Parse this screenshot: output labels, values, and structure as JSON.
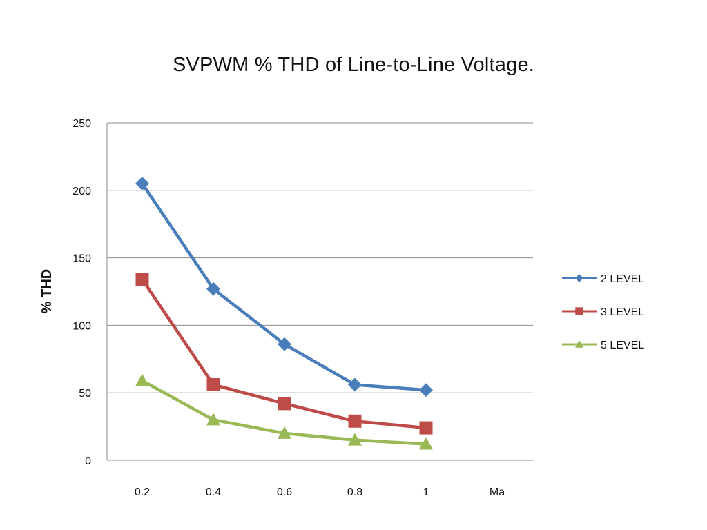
{
  "chart_data": {
    "type": "line",
    "title": "SVPWM % THD of Line-to-Line Voltage.",
    "ylabel": "% THD",
    "xlabel": "Ma",
    "categories": [
      "0.2",
      "0.4",
      "0.6",
      "0.8",
      "1"
    ],
    "ylim": [
      0,
      250
    ],
    "yticks": [
      0,
      50,
      100,
      150,
      200,
      250
    ],
    "grid": true,
    "legend_position": "right",
    "series": [
      {
        "name": "2 LEVEL",
        "color": "#4a7ebb",
        "marker": "diamond",
        "values": [
          205,
          127,
          86,
          56,
          52
        ]
      },
      {
        "name": "3 LEVEL",
        "color": "#be4b48",
        "marker": "square",
        "values": [
          134,
          56,
          42,
          29,
          24
        ]
      },
      {
        "name": "5 LEVEL",
        "color": "#98b954",
        "marker": "triangle",
        "values": [
          59,
          30,
          20,
          15,
          12
        ]
      }
    ]
  }
}
